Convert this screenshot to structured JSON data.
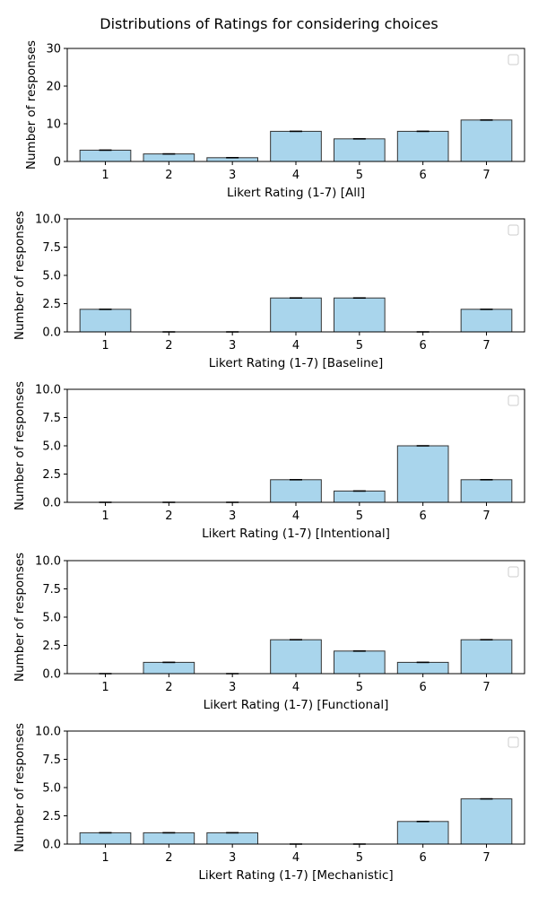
{
  "figure": {
    "suptitle": "Distributions of Ratings for considering choices",
    "bar_color": "#a9d5ec",
    "bar_edge_color": "#333333"
  },
  "chart_data": [
    {
      "type": "bar",
      "categories": [
        "1",
        "2",
        "3",
        "4",
        "5",
        "6",
        "7"
      ],
      "values": [
        3,
        2,
        1,
        8,
        6,
        8,
        11
      ],
      "xlabel": "Likert Rating (1-7) [All]",
      "ylabel": "Number of responses",
      "ylim": [
        0,
        30
      ],
      "yticks": [
        0,
        10,
        20,
        30
      ],
      "ytick_labels": [
        "0",
        "10",
        "20",
        "30"
      ],
      "legend": "top-right (empty)",
      "grid": false
    },
    {
      "type": "bar",
      "categories": [
        "1",
        "2",
        "3",
        "4",
        "5",
        "6",
        "7"
      ],
      "values": [
        2,
        0,
        0,
        3,
        3,
        0,
        2
      ],
      "xlabel": "Likert Rating (1-7) [Baseline]",
      "ylabel": "Number of responses",
      "ylim": [
        0,
        10
      ],
      "yticks": [
        0,
        2.5,
        5,
        7.5,
        10
      ],
      "ytick_labels": [
        "0.0",
        "2.5",
        "5.0",
        "7.5",
        "10.0"
      ],
      "legend": "top-right (empty)",
      "grid": false
    },
    {
      "type": "bar",
      "categories": [
        "1",
        "2",
        "3",
        "4",
        "5",
        "6",
        "7"
      ],
      "values": [
        0,
        0,
        0,
        2,
        1,
        5,
        2
      ],
      "xlabel": "Likert Rating (1-7) [Intentional]",
      "ylabel": "Number of responses",
      "ylim": [
        0,
        10
      ],
      "yticks": [
        0,
        2.5,
        5,
        7.5,
        10
      ],
      "ytick_labels": [
        "0.0",
        "2.5",
        "5.0",
        "7.5",
        "10.0"
      ],
      "legend": "top-right (empty)",
      "grid": false
    },
    {
      "type": "bar",
      "categories": [
        "1",
        "2",
        "3",
        "4",
        "5",
        "6",
        "7"
      ],
      "values": [
        0,
        1,
        0,
        3,
        2,
        1,
        3
      ],
      "xlabel": "Likert Rating (1-7) [Functional]",
      "ylabel": "Number of responses",
      "ylim": [
        0,
        10
      ],
      "yticks": [
        0,
        2.5,
        5,
        7.5,
        10
      ],
      "ytick_labels": [
        "0.0",
        "2.5",
        "5.0",
        "7.5",
        "10.0"
      ],
      "legend": "top-right (empty)",
      "grid": false
    },
    {
      "type": "bar",
      "categories": [
        "1",
        "2",
        "3",
        "4",
        "5",
        "6",
        "7"
      ],
      "values": [
        1,
        1,
        1,
        0,
        0,
        2,
        4
      ],
      "xlabel": "Likert Rating (1-7) [Mechanistic]",
      "ylabel": "Number of responses",
      "ylim": [
        0,
        10
      ],
      "yticks": [
        0,
        2.5,
        5,
        7.5,
        10
      ],
      "ytick_labels": [
        "0.0",
        "2.5",
        "5.0",
        "7.5",
        "10.0"
      ],
      "legend": "top-right (empty)",
      "grid": false
    }
  ]
}
